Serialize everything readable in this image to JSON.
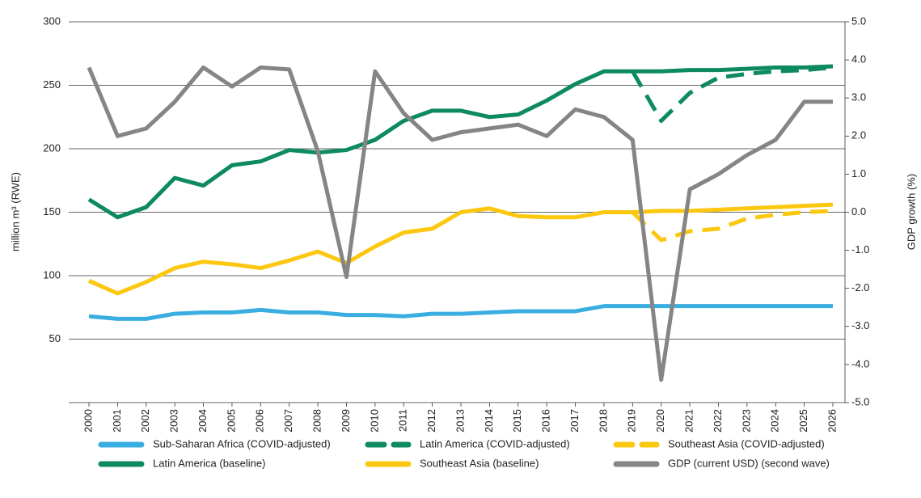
{
  "chart_data": {
    "type": "line",
    "ylabel": "million m³ (RWE)",
    "y2label": "GDP growth (%)",
    "categories": [
      "2000",
      "2001",
      "2002",
      "2003",
      "2004",
      "2005",
      "2006",
      "2007",
      "2008",
      "2009",
      "2010",
      "2011",
      "2012",
      "2013",
      "2014",
      "2015",
      "2016",
      "2017",
      "2018",
      "2019",
      "2020",
      "2021",
      "2022",
      "2023",
      "2024",
      "2025",
      "2026"
    ],
    "ylim": [
      0,
      300
    ],
    "yticks": [
      50,
      100,
      150,
      200,
      250,
      300
    ],
    "y2lim": [
      -5,
      5
    ],
    "y2ticks": [
      {
        "value": 5,
        "label": "5.0"
      },
      {
        "value": 4,
        "label": "4.0"
      },
      {
        "value": 3,
        "label": "3.0"
      },
      {
        "value": 2,
        "label": "2.0"
      },
      {
        "value": 1,
        "label": "1.0"
      },
      {
        "value": 0,
        "label": "0.0"
      },
      {
        "value": -1,
        "label": "-1.0"
      },
      {
        "value": -2,
        "label": "-2.0"
      },
      {
        "value": -3,
        "label": "-3.0"
      },
      {
        "value": -4,
        "label": "-4.0"
      },
      {
        "value": -5,
        "label": "-5.0"
      }
    ],
    "grid": true,
    "legend": "bottom",
    "series": [
      {
        "name": "Sub-Saharan Africa (COVID-adjusted)",
        "color": "#3aaee0",
        "dash": false,
        "values": [
          68,
          66,
          66,
          70,
          71,
          71,
          73,
          71,
          71,
          69,
          69,
          68,
          70,
          70,
          71,
          72,
          72,
          72,
          76,
          76,
          76,
          76,
          76,
          76,
          76,
          76,
          76
        ]
      },
      {
        "name": "Latin America (COVID-adjusted)",
        "color": "#0d8a5e",
        "dash": true,
        "values": [
          null,
          null,
          null,
          null,
          null,
          null,
          null,
          null,
          null,
          null,
          null,
          null,
          null,
          null,
          null,
          null,
          null,
          null,
          null,
          261,
          222,
          244,
          256,
          259,
          261,
          262,
          264
        ]
      },
      {
        "name": "Southeast Asia (COVID-adjusted)",
        "color": "#fcc70f",
        "dash": true,
        "values": [
          null,
          null,
          null,
          null,
          null,
          null,
          null,
          null,
          null,
          null,
          null,
          null,
          null,
          null,
          null,
          null,
          null,
          null,
          null,
          150,
          128,
          135,
          137,
          145,
          148,
          150,
          151
        ]
      },
      {
        "name": "Latin America (baseline)",
        "color": "#0d8a5e",
        "dash": false,
        "values": [
          160,
          146,
          154,
          177,
          171,
          187,
          190,
          199,
          197,
          199,
          207,
          222,
          230,
          230,
          225,
          227,
          238,
          251,
          261,
          261,
          261,
          262,
          262,
          263,
          264,
          264,
          265
        ]
      },
      {
        "name": "Southeast Asia (baseline)",
        "color": "#fcc70f",
        "dash": false,
        "values": [
          96,
          86,
          95,
          106,
          111,
          109,
          106,
          112,
          119,
          110,
          123,
          134,
          137,
          150,
          153,
          147,
          146,
          146,
          150,
          150,
          151,
          151,
          152,
          153,
          154,
          155,
          156
        ]
      },
      {
        "name": "GDP (current USD) (second wave)",
        "color": "#858585",
        "dash": false,
        "axis": "y2",
        "values": [
          3.8,
          2.0,
          2.2,
          2.9,
          3.8,
          3.3,
          3.8,
          3.75,
          1.6,
          -1.7,
          3.7,
          2.6,
          1.9,
          2.1,
          2.2,
          2.3,
          2.0,
          2.7,
          2.5,
          1.9,
          -4.4,
          0.6,
          1.0,
          1.5,
          1.9,
          2.9,
          2.9
        ]
      }
    ]
  }
}
